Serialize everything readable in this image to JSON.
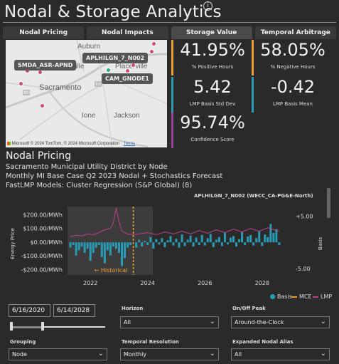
{
  "header": {
    "title": "Nodal & Storage Analytics",
    "info_icon": "i"
  },
  "tabs": [
    "Nodal Pricing",
    "Nodal Impacts",
    "Storage Value",
    "Temporal Arbitrage"
  ],
  "map": {
    "labels": [
      "SMDA_ASR-APND",
      "APLHILGN_7_N002",
      "CAM_GNODE1"
    ],
    "cities": [
      "Auburn",
      "Roseville",
      "Placerville",
      "Sacramento",
      "Ione",
      "Jackson"
    ],
    "highway_shields": [
      "80",
      "50"
    ],
    "attribution": "© 2024 TomTom, © 2024 Microsoft Corporation",
    "attribution_logo": "Microsoft",
    "terms": "Terms"
  },
  "kpis": [
    {
      "value": "41.95%",
      "label": "% Positive Hours",
      "color": "#f0a030"
    },
    {
      "value": "58.05%",
      "label": "% Negative Hours",
      "color": "#f0a030"
    },
    {
      "value": "5.42",
      "label": "LMP Basis Std Dev",
      "color": "#2a9bb5"
    },
    {
      "value": "-0.42",
      "label": "LMP Basis Mean",
      "color": "#2a9bb5"
    },
    {
      "value": "95.74%",
      "label": "Confidence Score",
      "color": "#a040a0"
    }
  ],
  "section": {
    "title": "Nodal Pricing",
    "lines": [
      "Sacramento Municipal Utility District by Node",
      "Monthly MI Base Case Q2 2023 Nodal + Stochastics Forecast",
      "FastLMP Models: Cluster Regression (S&P Global) (8)"
    ]
  },
  "chart_header": "APLHILGN_7_N002 (WECC_CA-PG&E-North)",
  "chart_data": {
    "type": "bar",
    "ylabel": "Energy Price",
    "y2label": "Basis",
    "yticks": [
      "$200.00/MWh",
      "$100.00/MWh",
      "$0.00/MWh",
      "-$100.00/MWh",
      "-$200.00/MWh"
    ],
    "ylim": [
      -240,
      260
    ],
    "y2ticks": [
      "+5.00",
      "-5.00"
    ],
    "y2lim": [
      -6.2,
      6.8
    ],
    "xticks": [
      "2022",
      "2024",
      "2026",
      "2028"
    ],
    "xlim": [
      2021.2,
      2028.9
    ],
    "annotation": "← Historical",
    "historical_end": 2023.5,
    "series": [
      {
        "name": "Basis",
        "color": "#2a9bb5",
        "x": [
          2021.3,
          2021.4,
          2021.5,
          2021.6,
          2021.7,
          2021.8,
          2021.9,
          2022.0,
          2022.1,
          2022.2,
          2022.3,
          2022.4,
          2022.5,
          2022.6,
          2022.7,
          2022.8,
          2022.9,
          2023.0,
          2023.1,
          2023.2,
          2023.3,
          2023.4,
          2023.6,
          2023.7,
          2023.8,
          2023.9,
          2024.0,
          2024.1,
          2024.2,
          2024.3,
          2024.4,
          2024.5,
          2024.6,
          2024.7,
          2024.8,
          2024.9,
          2025.0,
          2025.1,
          2025.2,
          2025.3,
          2025.4,
          2025.5,
          2025.6,
          2025.7,
          2025.8,
          2025.9,
          2026.0,
          2026.1,
          2026.2,
          2026.3,
          2026.4,
          2026.5,
          2026.6,
          2026.7,
          2026.8,
          2026.9,
          2027.0,
          2027.1,
          2027.2,
          2027.3,
          2027.4,
          2027.5,
          2027.6,
          2027.7,
          2027.8,
          2027.9,
          2028.0,
          2028.1,
          2028.2,
          2028.3,
          2028.4,
          2028.5,
          2028.6
        ],
        "values": [
          -1.0,
          -0.5,
          -2.5,
          -1.5,
          -0.8,
          -2.0,
          -1.2,
          -3.5,
          -2.0,
          -1.0,
          -0.5,
          -2.8,
          -4.0,
          -1.5,
          -2.5,
          -0.8,
          -1.2,
          -2.0,
          -4.5,
          -3.0,
          -1.0,
          -0.5,
          -1.0,
          0.5,
          -0.8,
          0.3,
          -0.5,
          1.0,
          -1.2,
          0.6,
          -0.4,
          0.8,
          -0.9,
          0.4,
          1.2,
          -0.6,
          0.7,
          -1.0,
          1.5,
          -0.7,
          0.5,
          1.3,
          -0.8,
          0.9,
          -0.5,
          1.4,
          -0.6,
          0.8,
          1.6,
          -0.9,
          0.5,
          1.0,
          -0.7,
          1.8,
          -0.4,
          0.9,
          1.2,
          -0.8,
          0.6,
          2.0,
          -0.5,
          1.1,
          1.4,
          -0.6,
          0.8,
          2.2,
          -0.7,
          1.5,
          1.0,
          3.5,
          1.8,
          2.5,
          -0.5
        ]
      },
      {
        "name": "MCE",
        "color": "#f0a030"
      },
      {
        "name": "LMP",
        "color": "#c0408a",
        "x": [
          2021.3,
          2021.5,
          2021.7,
          2021.9,
          2022.1,
          2022.3,
          2022.5,
          2022.7,
          2022.8,
          2022.9,
          2023.0,
          2023.1,
          2023.3,
          2023.5,
          2023.7,
          2024.0,
          2024.3,
          2024.6,
          2024.9,
          2025.2,
          2025.5,
          2025.8,
          2026.1,
          2026.4,
          2026.7,
          2027.0,
          2027.3,
          2027.6,
          2027.9,
          2028.2,
          2028.5,
          2028.6
        ],
        "values": [
          40,
          50,
          45,
          60,
          55,
          70,
          90,
          100,
          140,
          250,
          150,
          80,
          60,
          55,
          60,
          70,
          55,
          75,
          60,
          80,
          60,
          85,
          65,
          90,
          70,
          95,
          75,
          100,
          80,
          105,
          85,
          80
        ]
      }
    ]
  },
  "legend": [
    "Basis",
    "MCE",
    "LMP"
  ],
  "filters": {
    "start_date": "6/16/2020",
    "end_date": "6/14/2028",
    "horizon": {
      "label": "Horizon",
      "value": "All"
    },
    "on_off_peak": {
      "label": "On/Off Peak",
      "value": "Around-the-Clock"
    },
    "grouping": {
      "label": "Grouping",
      "value": "Node"
    },
    "temporal_resolution": {
      "label": "Temporal Resolution",
      "value": "Monthly"
    },
    "expanded_nodal_alias": {
      "label": "Expanded Nodal Alias",
      "value": "All"
    }
  }
}
